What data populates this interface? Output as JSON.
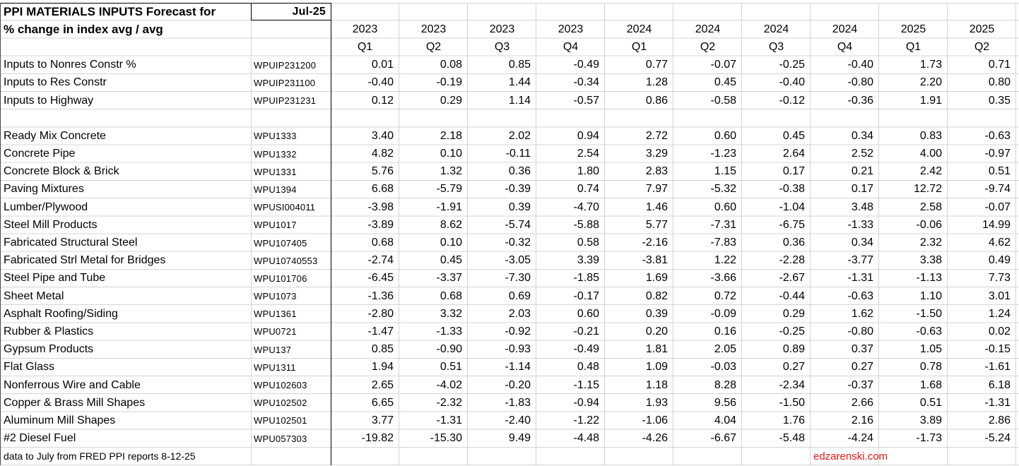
{
  "sheet": {
    "title": "PPI MATERIALS INPUTS Forecast for",
    "forecast_month": "Jul-25",
    "subtitle": "% change in index avg / avg",
    "footer_note": "data to July from FRED PPI reports 8-12-25",
    "watermark": "edzarenski.com",
    "colors": {
      "watermark_red": "#ee1414",
      "gridline": "#d4d4d4",
      "border_black": "#000000",
      "text": "#000000",
      "background": "#ffffff"
    }
  },
  "table": {
    "year_headers": [
      "2023",
      "2023",
      "2023",
      "2023",
      "2024",
      "2024",
      "2024",
      "2024",
      "2025",
      "2025"
    ],
    "quarter_headers": [
      "Q1",
      "Q2",
      "Q3",
      "Q4",
      "Q1",
      "Q2",
      "Q3",
      "Q4",
      "Q1",
      "Q2"
    ],
    "groups": [
      {
        "name": "construction-inputs",
        "rows": [
          {
            "label": "Inputs to Nonres Constr %",
            "code": "WPUIP231200",
            "values": [
              "0.01",
              "0.08",
              "0.85",
              "-0.49",
              "0.77",
              "-0.07",
              "-0.25",
              "-0.40",
              "1.73",
              "0.71"
            ]
          },
          {
            "label": "Inputs to Res Constr",
            "code": "WPUIP231100",
            "values": [
              "-0.40",
              "-0.19",
              "1.44",
              "-0.34",
              "1.28",
              "0.45",
              "-0.40",
              "-0.80",
              "2.20",
              "0.80"
            ]
          },
          {
            "label": "Inputs to Highway",
            "code": "WPUIP231231",
            "values": [
              "0.12",
              "0.29",
              "1.14",
              "-0.57",
              "0.86",
              "-0.58",
              "-0.12",
              "-0.36",
              "1.91",
              "0.35"
            ]
          }
        ]
      },
      {
        "name": "materials",
        "rows": [
          {
            "label": "Ready Mix Concrete",
            "code": "WPU1333",
            "values": [
              "3.40",
              "2.18",
              "2.02",
              "0.94",
              "2.72",
              "0.60",
              "0.45",
              "0.34",
              "0.83",
              "-0.63"
            ]
          },
          {
            "label": "Concrete Pipe",
            "code": "WPU1332",
            "values": [
              "4.82",
              "0.10",
              "-0.11",
              "2.54",
              "3.29",
              "-1.23",
              "2.64",
              "2.52",
              "4.00",
              "-0.97"
            ]
          },
          {
            "label": "Concrete Block & Brick",
            "code": "WPU1331",
            "values": [
              "5.76",
              "1.32",
              "0.36",
              "1.80",
              "2.83",
              "1.15",
              "0.17",
              "0.21",
              "2.42",
              "0.51"
            ]
          },
          {
            "label": "Paving Mixtures",
            "code": "WPU1394",
            "values": [
              "6.68",
              "-5.79",
              "-0.39",
              "0.74",
              "7.97",
              "-5.32",
              "-0.38",
              "0.17",
              "12.72",
              "-9.74"
            ]
          },
          {
            "label": "Lumber/Plywood",
            "code": "WPUSI004011",
            "values": [
              "-3.98",
              "-1.91",
              "0.39",
              "-4.70",
              "1.46",
              "0.60",
              "-1.04",
              "3.48",
              "2.58",
              "-0.07"
            ]
          },
          {
            "label": "Steel Mill Products",
            "code": "WPU1017",
            "values": [
              "-3.89",
              "8.62",
              "-5.74",
              "-5.88",
              "5.77",
              "-7.31",
              "-6.75",
              "-1.33",
              "-0.06",
              "14.99"
            ]
          },
          {
            "label": "Fabricated Structural Steel",
            "code": "WPU107405",
            "values": [
              "0.68",
              "0.10",
              "-0.32",
              "0.58",
              "-2.16",
              "-7.83",
              "0.36",
              "0.34",
              "2.32",
              "4.62"
            ]
          },
          {
            "label": "Fabricated Strl Metal for Bridges",
            "code": "WPU10740553",
            "values": [
              "-2.74",
              "0.45",
              "-3.05",
              "3.39",
              "-3.81",
              "1.22",
              "-2.28",
              "-3.77",
              "3.38",
              "0.49"
            ]
          },
          {
            "label": "Steel Pipe and Tube",
            "code": "WPU101706",
            "values": [
              "-6.45",
              "-3.37",
              "-7.30",
              "-1.85",
              "1.69",
              "-3.66",
              "-2.67",
              "-1.31",
              "-1.13",
              "7.73"
            ]
          },
          {
            "label": "Sheet Metal",
            "code": "WPU1073",
            "values": [
              "-1.36",
              "0.68",
              "0.69",
              "-0.17",
              "0.82",
              "0.72",
              "-0.44",
              "-0.63",
              "1.10",
              "3.01"
            ]
          },
          {
            "label": "Asphalt Roofing/Siding",
            "code": "WPU1361",
            "values": [
              "-2.80",
              "3.32",
              "2.03",
              "0.60",
              "0.39",
              "-0.09",
              "0.29",
              "1.62",
              "-1.50",
              "1.24"
            ]
          },
          {
            "label": "Rubber & Plastics",
            "code": "WPU0721",
            "values": [
              "-1.47",
              "-1.33",
              "-0.92",
              "-0.21",
              "0.20",
              "0.16",
              "-0.25",
              "-0.80",
              "-0.63",
              "0.02"
            ]
          },
          {
            "label": "Gypsum Products",
            "code": "WPU137",
            "values": [
              "0.85",
              "-0.90",
              "-0.93",
              "-0.49",
              "1.81",
              "2.05",
              "0.89",
              "0.37",
              "1.05",
              "-0.15"
            ]
          },
          {
            "label": "Flat Glass",
            "code": "WPU1311",
            "values": [
              "1.94",
              "0.51",
              "-1.14",
              "0.48",
              "1.09",
              "-0.03",
              "0.27",
              "0.27",
              "0.78",
              "-1.61"
            ]
          },
          {
            "label": "Nonferrous Wire and Cable",
            "code": "WPU102603",
            "values": [
              "2.65",
              "-4.02",
              "-0.20",
              "-1.15",
              "1.18",
              "8.28",
              "-2.34",
              "-0.37",
              "1.68",
              "6.18"
            ]
          },
          {
            "label": "Copper & Brass Mill Shapes",
            "code": "WPU102502",
            "values": [
              "6.65",
              "-2.32",
              "-1.83",
              "-0.94",
              "1.93",
              "9.56",
              "-1.50",
              "2.66",
              "0.51",
              "-1.31"
            ]
          },
          {
            "label": "Aluminum Mill Shapes",
            "code": "WPU102501",
            "values": [
              "3.77",
              "-1.31",
              "-2.40",
              "-1.22",
              "-1.06",
              "4.04",
              "1.76",
              "2.16",
              "3.89",
              "2.86"
            ]
          },
          {
            "label": "#2 Diesel Fuel",
            "code": "WPU057303",
            "values": [
              "-19.82",
              "-15.30",
              "9.49",
              "-4.48",
              "-4.26",
              "-6.67",
              "-5.48",
              "-4.24",
              "-1.73",
              "-5.24"
            ]
          }
        ]
      }
    ]
  }
}
